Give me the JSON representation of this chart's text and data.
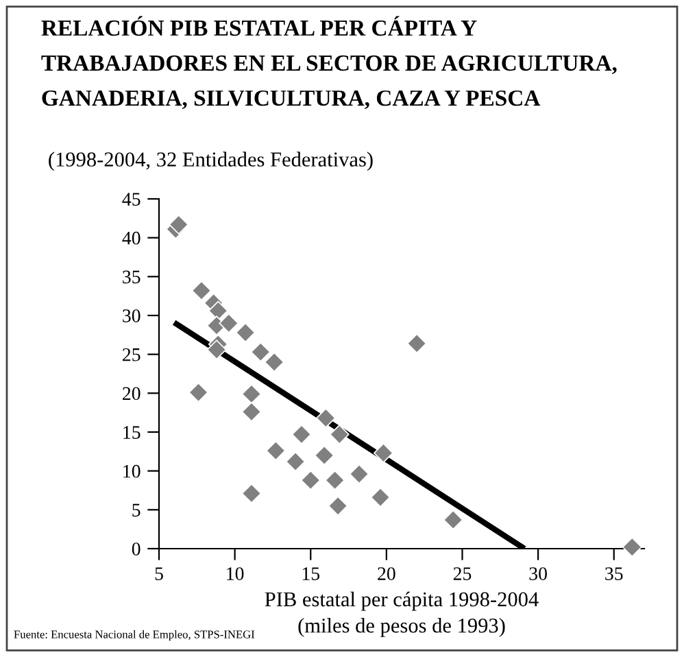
{
  "chart_data": {
    "type": "scatter",
    "title": "RELACIÓN PIB ESTATAL PER CÁPITA Y\nTRABAJADORES EN EL SECTOR DE AGRICULTURA,\nGANADERIA, SILVICULTURA, CAZA Y PESCA",
    "subtitle": "(1998-2004, 32 Entidades Federativas)",
    "xlabel": "PIB estatal per cápita 1998-2004\n(miles de pesos de 1993)",
    "annotations": [
      "Fuente: Encuesta Nacional de Empleo, STPS-INEGI"
    ],
    "xlim": [
      5,
      37
    ],
    "ylim": [
      0,
      45
    ],
    "xticks": [
      5,
      10,
      15,
      20,
      25,
      30,
      35
    ],
    "yticks": [
      0,
      5,
      10,
      15,
      20,
      25,
      30,
      35,
      40,
      45
    ],
    "grid": false,
    "legend": false,
    "series": [
      {
        "marker": "diamond",
        "color": "#808080",
        "x": [
          6.1,
          6.3,
          7.8,
          8.6,
          8.9,
          8.8,
          9.6,
          8.9,
          8.8,
          10.7,
          11.7,
          12.6,
          7.6,
          11.1,
          11.1,
          11.1,
          12.7,
          14.0,
          14.4,
          15.0,
          16.0,
          15.9,
          16.6,
          16.9,
          16.8,
          18.2,
          19.8,
          19.6,
          22.0,
          24.4,
          36.2
        ],
        "values": [
          41.1,
          41.7,
          33.2,
          31.6,
          30.6,
          28.7,
          29.0,
          26.3,
          25.6,
          27.8,
          25.3,
          24.0,
          20.1,
          19.9,
          17.6,
          7.1,
          12.6,
          11.2,
          14.7,
          8.8,
          16.8,
          12.0,
          8.8,
          14.7,
          5.5,
          9.6,
          12.3,
          6.6,
          26.4,
          3.7,
          0.2
        ]
      },
      {
        "type": "line",
        "marker": "none",
        "line_style": "solid",
        "color": "#000000",
        "x": [
          6.0,
          29.1
        ],
        "values": [
          29.1,
          0
        ]
      }
    ]
  }
}
